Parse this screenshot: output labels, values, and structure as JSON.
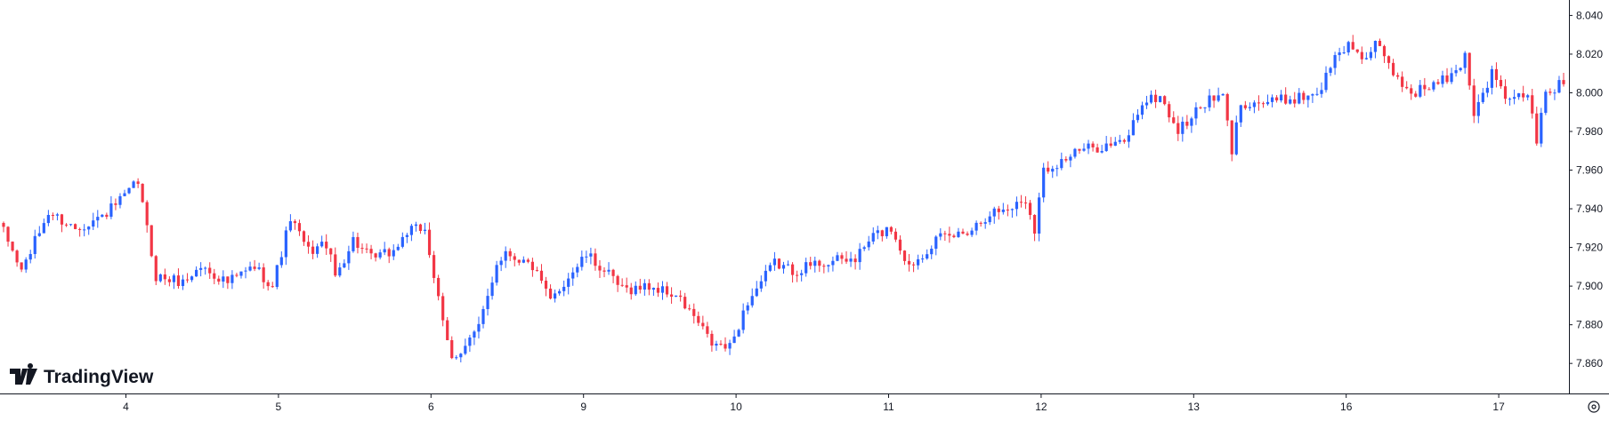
{
  "chart_data": {
    "type": "candlestick",
    "title": "",
    "xlabel": "",
    "ylabel": "",
    "ylim": [
      7.844,
      8.048
    ],
    "y_ticks": [
      "7.860",
      "7.880",
      "7.900",
      "7.920",
      "7.940",
      "7.960",
      "7.980",
      "8.000",
      "8.020",
      "8.040"
    ],
    "x_ticks": [
      "4",
      "5",
      "6",
      "9",
      "10",
      "11",
      "12",
      "13",
      "16",
      "17"
    ],
    "grid": false,
    "colors": {
      "up": "#2962ff",
      "down": "#f23645",
      "axis": "#131722",
      "text": "#131722"
    },
    "anchors": [
      [
        0,
        7.928
      ],
      [
        4,
        7.908
      ],
      [
        10,
        7.938
      ],
      [
        16,
        7.93
      ],
      [
        22,
        7.936
      ],
      [
        27,
        7.946
      ],
      [
        30,
        7.954
      ],
      [
        34,
        7.905
      ],
      [
        40,
        7.902
      ],
      [
        44,
        7.91
      ],
      [
        50,
        7.902
      ],
      [
        56,
        7.91
      ],
      [
        60,
        7.9
      ],
      [
        64,
        7.935
      ],
      [
        68,
        7.918
      ],
      [
        72,
        7.922
      ],
      [
        74,
        7.905
      ],
      [
        78,
        7.924
      ],
      [
        82,
        7.914
      ],
      [
        87,
        7.918
      ],
      [
        90,
        7.928
      ],
      [
        94,
        7.93
      ],
      [
        96,
        7.905
      ],
      [
        98,
        7.88
      ],
      [
        100,
        7.862
      ],
      [
        106,
        7.878
      ],
      [
        110,
        7.912
      ],
      [
        112,
        7.918
      ],
      [
        118,
        7.91
      ],
      [
        122,
        7.892
      ],
      [
        126,
        7.905
      ],
      [
        130,
        7.916
      ],
      [
        134,
        7.908
      ],
      [
        138,
        7.898
      ],
      [
        144,
        7.9
      ],
      [
        150,
        7.895
      ],
      [
        154,
        7.884
      ],
      [
        158,
        7.87
      ],
      [
        162,
        7.868
      ],
      [
        166,
        7.892
      ],
      [
        172,
        7.912
      ],
      [
        176,
        7.908
      ],
      [
        182,
        7.912
      ],
      [
        190,
        7.914
      ],
      [
        194,
        7.926
      ],
      [
        198,
        7.93
      ],
      [
        202,
        7.91
      ],
      [
        208,
        7.924
      ],
      [
        212,
        7.926
      ],
      [
        216,
        7.93
      ],
      [
        220,
        7.938
      ],
      [
        224,
        7.94
      ],
      [
        228,
        7.945
      ],
      [
        230,
        7.93
      ],
      [
        232,
        7.96
      ],
      [
        236,
        7.965
      ],
      [
        240,
        7.97
      ],
      [
        244,
        7.972
      ],
      [
        250,
        7.974
      ],
      [
        254,
        7.995
      ],
      [
        258,
        7.998
      ],
      [
        262,
        7.98
      ],
      [
        268,
        7.995
      ],
      [
        272,
        7.998
      ],
      [
        274,
        7.97
      ],
      [
        276,
        7.995
      ],
      [
        282,
        7.995
      ],
      [
        290,
        7.998
      ],
      [
        294,
        8.002
      ],
      [
        296,
        8.015
      ],
      [
        300,
        8.025
      ],
      [
        304,
        8.018
      ],
      [
        306,
        8.025
      ],
      [
        310,
        8.01
      ],
      [
        314,
        8.0
      ],
      [
        320,
        8.005
      ],
      [
        324,
        8.01
      ],
      [
        326,
        8.02
      ],
      [
        328,
        7.99
      ],
      [
        332,
        8.01
      ],
      [
        336,
        7.995
      ],
      [
        340,
        8.0
      ],
      [
        342,
        7.975
      ],
      [
        344,
        8.0
      ],
      [
        348,
        8.005
      ]
    ],
    "n_candles": 349
  },
  "branding": {
    "logo_icon": "tradingview-logo-icon",
    "name": "TradingView"
  },
  "controls": {
    "settings_icon": "gear-icon"
  }
}
